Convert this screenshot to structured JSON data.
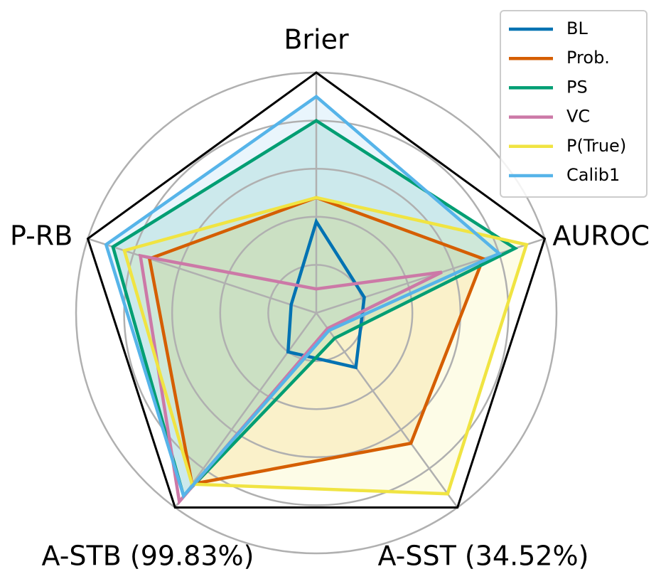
{
  "chart_data": {
    "type": "radar",
    "axes": [
      "Brier",
      "AUROC",
      "A-SST (34.52%)",
      "A-STB (99.83%)",
      "P-RB"
    ],
    "rlim": [
      0,
      1
    ],
    "grid": true,
    "grid_levels": [
      0.2,
      0.4,
      0.6,
      0.8,
      1.0
    ],
    "legend_position": "top-right",
    "series": [
      {
        "name": "BL",
        "color": "#0072B2",
        "fill": false,
        "values": [
          0.38,
          0.21,
          0.28,
          0.2,
          0.11
        ]
      },
      {
        "name": "Prob.",
        "color": "#D55E00",
        "fill": true,
        "fill_color": "#E69F00",
        "values": [
          0.48,
          0.73,
          0.67,
          0.88,
          0.73
        ]
      },
      {
        "name": "PS",
        "color": "#009E73",
        "fill": true,
        "fill_color": "#009E73",
        "values": [
          0.8,
          0.87,
          0.13,
          0.94,
          0.89
        ]
      },
      {
        "name": "VC",
        "color": "#CC79A7",
        "fill": false,
        "values": [
          0.1,
          0.55,
          0.08,
          0.97,
          0.77
        ]
      },
      {
        "name": "P(True)",
        "color": "#F0E442",
        "fill": true,
        "fill_color": "#F0E442",
        "values": [
          0.48,
          0.92,
          0.93,
          0.88,
          0.84
        ]
      },
      {
        "name": "Calib1",
        "color": "#56B4E9",
        "fill": true,
        "fill_color": "#56B4E9",
        "values": [
          0.9,
          0.8,
          0.09,
          0.94,
          0.92
        ]
      }
    ]
  }
}
